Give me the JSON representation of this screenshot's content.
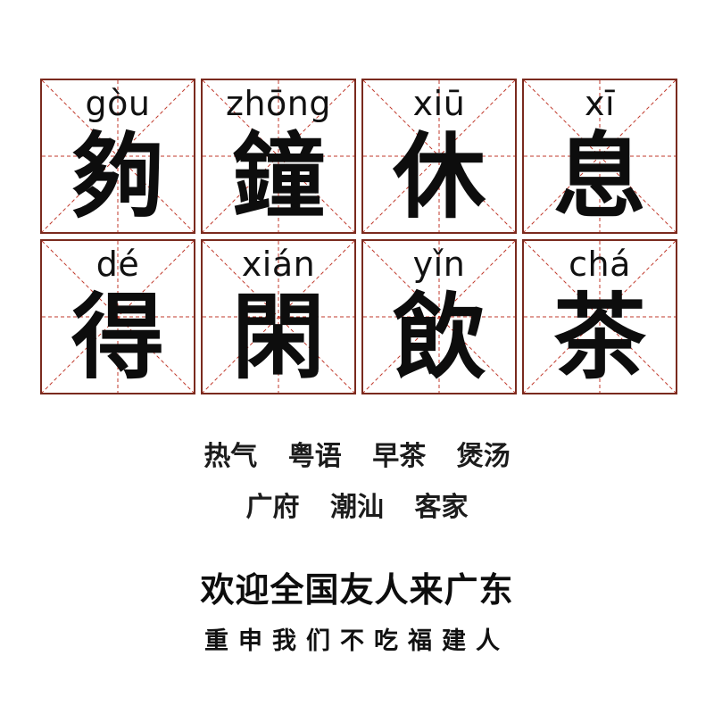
{
  "cells": [
    {
      "pinyin": "gòu",
      "hanzi": "夠"
    },
    {
      "pinyin": "zhōng",
      "hanzi": "鐘"
    },
    {
      "pinyin": "xiū",
      "hanzi": "休"
    },
    {
      "pinyin": "xī",
      "hanzi": "息"
    },
    {
      "pinyin": "dé",
      "hanzi": "得"
    },
    {
      "pinyin": "xián",
      "hanzi": "閑"
    },
    {
      "pinyin": "yǐn",
      "hanzi": "飲"
    },
    {
      "pinyin": "chá",
      "hanzi": "茶"
    }
  ],
  "tags_row1": [
    "热气",
    "粤语",
    "早茶",
    "煲汤"
  ],
  "tags_row2": [
    "广府",
    "潮汕",
    "客家"
  ],
  "welcome": "欢迎全国友人来广东",
  "reassure": "重申我们不吃福建人",
  "colors": {
    "grid_border": "#7a2a1e",
    "guide_line": "#c0392b",
    "text": "#111111"
  }
}
